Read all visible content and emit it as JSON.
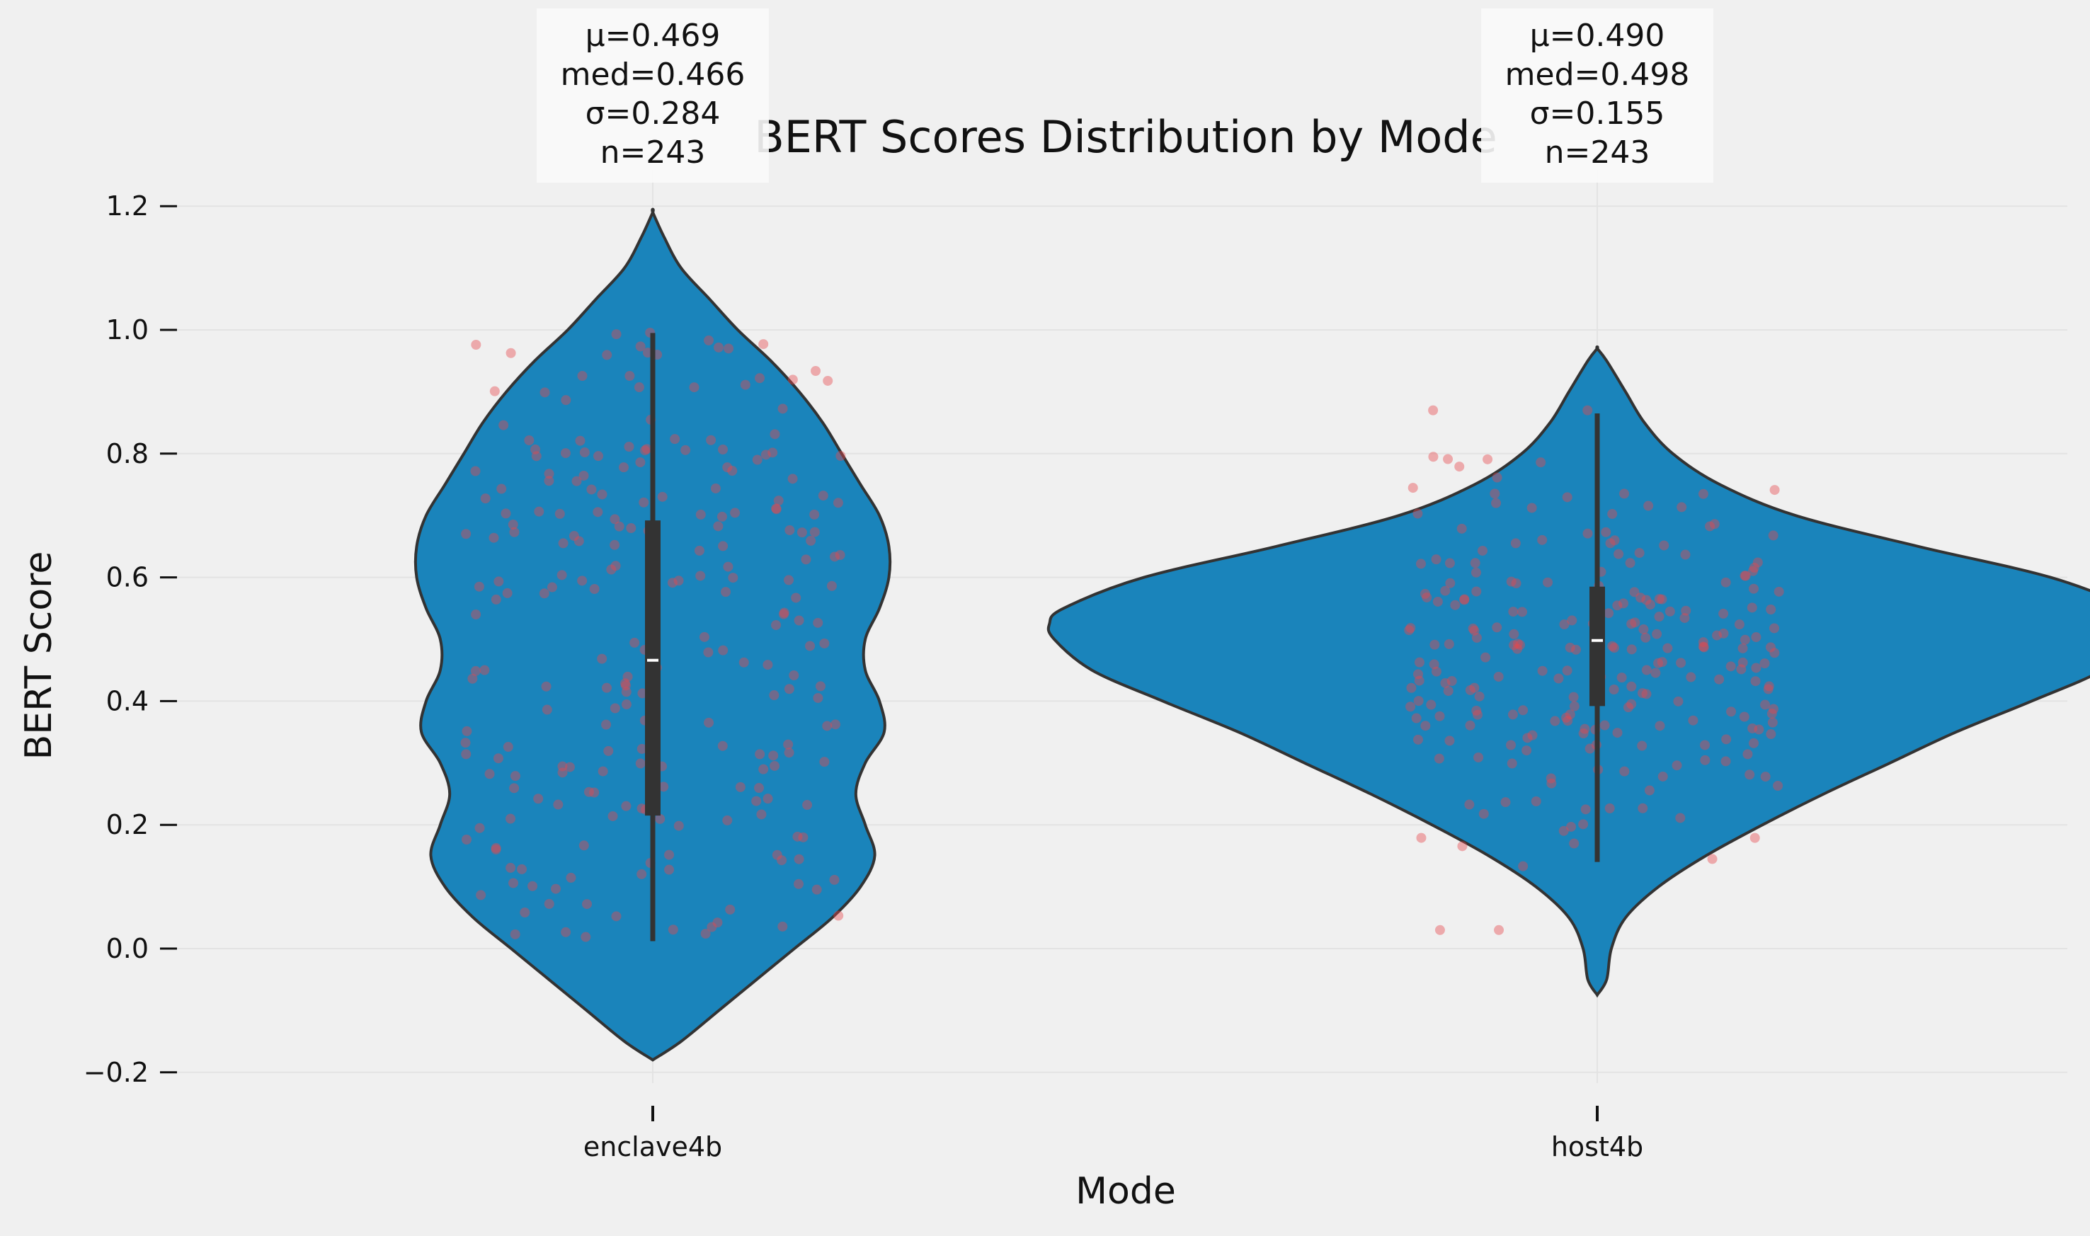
{
  "chart_data": {
    "type": "violin",
    "title": "BERT Scores Distribution by Mode",
    "xlabel": "Mode",
    "ylabel": "BERT Score",
    "categories": [
      "enclave4b",
      "host4b"
    ],
    "ylim": [
      -0.22,
      1.25
    ],
    "yticks": [
      -0.2,
      0.0,
      0.2,
      0.4,
      0.6,
      0.8,
      1.0,
      1.2
    ],
    "ytick_labels": [
      "−0.2",
      "0.0",
      "0.2",
      "0.4",
      "0.6",
      "0.8",
      "1.0",
      "1.2"
    ],
    "grid": true,
    "colors": {
      "background": "#f0f0f0",
      "violin_fill": "#1a84bb",
      "violin_edge": "#333333",
      "points": "#e8474c",
      "box": "#333333",
      "median": "#ffffff",
      "grid": "#e3e3e3",
      "stat_box": "#fafafa"
    },
    "series": [
      {
        "category": "enclave4b",
        "stats": {
          "mean": 0.469,
          "median": 0.466,
          "std": 0.284,
          "n": 243
        },
        "stat_lines": [
          "μ=0.469",
          "med=0.466",
          "σ=0.284",
          "n=243"
        ],
        "box": {
          "q1": 0.215,
          "median": 0.466,
          "q3": 0.692,
          "whisker_low": 0.012,
          "whisker_high": 0.995
        },
        "kde": [
          [
            -0.18,
            0.0
          ],
          [
            -0.15,
            0.03
          ],
          [
            -0.1,
            0.07
          ],
          [
            -0.05,
            0.11
          ],
          [
            0.0,
            0.15
          ],
          [
            0.05,
            0.19
          ],
          [
            0.1,
            0.22
          ],
          [
            0.15,
            0.235
          ],
          [
            0.2,
            0.225
          ],
          [
            0.25,
            0.215
          ],
          [
            0.3,
            0.225
          ],
          [
            0.35,
            0.245
          ],
          [
            0.4,
            0.24
          ],
          [
            0.45,
            0.225
          ],
          [
            0.5,
            0.225
          ],
          [
            0.55,
            0.24
          ],
          [
            0.6,
            0.25
          ],
          [
            0.65,
            0.25
          ],
          [
            0.7,
            0.24
          ],
          [
            0.75,
            0.22
          ],
          [
            0.8,
            0.2
          ],
          [
            0.85,
            0.18
          ],
          [
            0.9,
            0.155
          ],
          [
            0.95,
            0.125
          ],
          [
            1.0,
            0.09
          ],
          [
            1.05,
            0.06
          ],
          [
            1.1,
            0.03
          ],
          [
            1.15,
            0.012
          ],
          [
            1.19,
            0.0
          ]
        ]
      },
      {
        "category": "host4b",
        "stats": {
          "mean": 0.49,
          "median": 0.498,
          "std": 0.155,
          "n": 243
        },
        "stat_lines": [
          "μ=0.490",
          "med=0.498",
          "σ=0.155",
          "n=243"
        ],
        "box": {
          "q1": 0.392,
          "median": 0.498,
          "q3": 0.585,
          "whisker_low": 0.14,
          "whisker_high": 0.865
        },
        "kde": [
          [
            -0.075,
            0.0
          ],
          [
            -0.05,
            0.01
          ],
          [
            0.0,
            0.015
          ],
          [
            0.05,
            0.03
          ],
          [
            0.1,
            0.065
          ],
          [
            0.15,
            0.115
          ],
          [
            0.2,
            0.175
          ],
          [
            0.25,
            0.24
          ],
          [
            0.3,
            0.31
          ],
          [
            0.35,
            0.38
          ],
          [
            0.4,
            0.46
          ],
          [
            0.45,
            0.535
          ],
          [
            0.5,
            0.575
          ],
          [
            0.525,
            0.58
          ],
          [
            0.55,
            0.565
          ],
          [
            0.6,
            0.48
          ],
          [
            0.65,
            0.34
          ],
          [
            0.7,
            0.21
          ],
          [
            0.75,
            0.13
          ],
          [
            0.8,
            0.08
          ],
          [
            0.85,
            0.05
          ],
          [
            0.9,
            0.03
          ],
          [
            0.95,
            0.01
          ],
          [
            0.97,
            0.0
          ]
        ]
      }
    ],
    "jitter_points": [
      {
        "category": "enclave4b",
        "count": 243,
        "y_range": [
          0.01,
          1.0
        ],
        "x_spread": 0.2
      },
      {
        "category": "host4b",
        "count": 243,
        "y_range": [
          0.03,
          0.87
        ],
        "x_spread": 0.2
      }
    ]
  }
}
